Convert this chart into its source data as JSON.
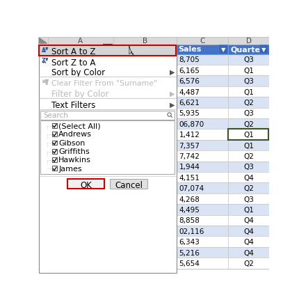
{
  "sales_data": [
    "8,705",
    "6,165",
    "6,576",
    "4,487",
    "6,621",
    "5,935",
    "06,870",
    "1,412",
    "7,357",
    "7,742",
    "1,944",
    "4,151",
    "07,074",
    "4,268",
    "4,495",
    "8,858",
    "02,116",
    "6,343",
    "5,216",
    "5,654"
  ],
  "quarter_data": [
    "Q3",
    "Q1",
    "Q3",
    "Q1",
    "Q2",
    "Q3",
    "Q2",
    "Q1",
    "Q1",
    "Q2",
    "Q3",
    "Q4",
    "Q2",
    "Q3",
    "Q1",
    "Q4",
    "Q4",
    "Q4",
    "Q4",
    "Q2"
  ],
  "checkbox_items": [
    "(Select All)",
    "Andrews",
    "Gibson",
    "Griffiths",
    "Hawkins",
    "James"
  ],
  "header_bg": "#4472C4",
  "header_text": "#FFFFFF",
  "row_alt1": "#FFFFFF",
  "row_alt2": "#DAE3F3",
  "menu_bg": "#F2F2F2",
  "menu_border": "#AAAAAA",
  "ok_border": "#CC0000",
  "highlight_border": "#CC0000",
  "sort_az_highlight": "#D4D4D4",
  "green_cell_border": "#375623",
  "figure_bg": "#FFFFFF",
  "col_header_bg": "#D9D9D9",
  "col_letter_color": "#444444",
  "gray_text": "#AAAAAA",
  "cb_list_bg": "#FFFFFF",
  "cb_list_border": "#BBBBBB"
}
